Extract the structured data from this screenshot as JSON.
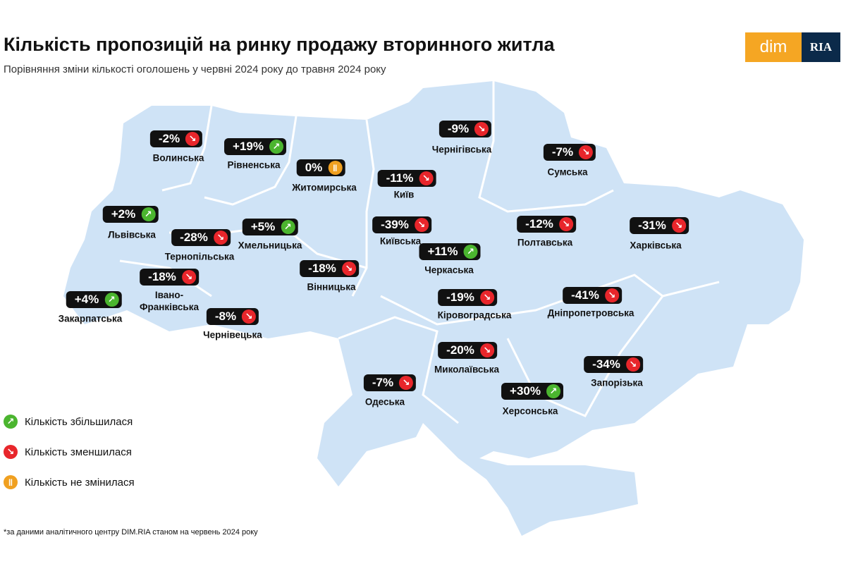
{
  "header": {
    "title": "Кількість пропозицій на ринку продажу вторинного житла",
    "subtitle": "Порівняння зміни кількості оголошень у червні 2024 року до травня 2024 року",
    "logo": [
      "dim",
      "RIA"
    ]
  },
  "regions": [
    {
      "name": "Волинська",
      "change": "-2%",
      "color": "#e8262b"
    },
    {
      "name": "Рівненська",
      "change": "+19%",
      "color": "#4bb52f"
    },
    {
      "name": "Житомирська",
      "change": "0%",
      "color": "#f0a020"
    },
    {
      "name": "Київ",
      "change": "-11%",
      "color": "#e8262b"
    },
    {
      "name": "Чернігівська",
      "change": "-9%",
      "color": "#e8262b"
    },
    {
      "name": "Сумська",
      "change": "-7%",
      "color": "#e8262b"
    },
    {
      "name": "Львівська",
      "change": "+2%",
      "color": "#4bb52f"
    },
    {
      "name": "Тернопільська",
      "change": "-28%",
      "color": "#e8262b"
    },
    {
      "name": "Хмельницька",
      "change": "+5%",
      "color": "#4bb52f"
    },
    {
      "name": "Київська",
      "change": "-39%",
      "color": "#e8262b"
    },
    {
      "name": "Полтавська",
      "change": "-12%",
      "color": "#e8262b"
    },
    {
      "name": "Харківська",
      "change": "-31%",
      "color": "#e8262b"
    },
    {
      "name": "Черкаська",
      "change": "+11%",
      "color": "#4bb52f"
    },
    {
      "name": "Вінницька",
      "change": "-18%",
      "color": "#e8262b"
    },
    {
      "name": "Івано-Франківська",
      "change": "-18%",
      "color": "#e8262b"
    },
    {
      "name": "Закарпатська",
      "change": "+4%",
      "color": "#4bb52f"
    },
    {
      "name": "Чернівецька",
      "change": "-8%",
      "color": "#e8262b"
    },
    {
      "name": "Кіровоградська",
      "change": "-19%",
      "color": "#e8262b"
    },
    {
      "name": "Дніпропетровська",
      "change": "-41%",
      "color": "#e8262b"
    },
    {
      "name": "Миколаївська",
      "change": "-20%",
      "color": "#e8262b"
    },
    {
      "name": "Запорізька",
      "change": "-34%",
      "color": "#e8262b"
    },
    {
      "name": "Одеська",
      "change": "-7%",
      "color": "#e8262b"
    },
    {
      "name": "Херсонська",
      "change": "+30%",
      "color": "#4bb52f"
    }
  ],
  "legend": [
    {
      "label": "Кількість збільшилася",
      "color": "#4bb52f"
    },
    {
      "label": "Кількість зменшилася",
      "color": "#e8262b"
    },
    {
      "label": "Кількість не змінилася",
      "color": "#f0a020"
    }
  ],
  "footnote": "*за даними аналітичного центру DIM.RIA станом на червень 2024 року"
}
